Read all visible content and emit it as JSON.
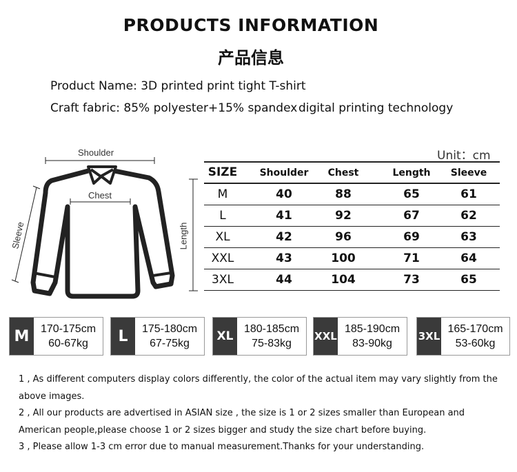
{
  "header": {
    "title": "PRODUCTS INFORMATION",
    "subtitle": "产品信息"
  },
  "product": {
    "name_line": "Product Name: 3D printed print tight T-shirt",
    "fabric_line": "Craft fabric: 85% polyester+15% spandex",
    "technology": "digital printing technology"
  },
  "diagram": {
    "shoulder": "Shoulder",
    "chest": "Chest",
    "sleeve": "Sleeve",
    "length": "Length"
  },
  "table": {
    "unit": "Unit：cm",
    "columns": [
      "SIZE",
      "Shoulder",
      "Chest",
      "Length",
      "Sleeve"
    ],
    "rows": [
      [
        "M",
        "40",
        "88",
        "65",
        "61"
      ],
      [
        "L",
        "41",
        "92",
        "67",
        "62"
      ],
      [
        "XL",
        "42",
        "96",
        "69",
        "63"
      ],
      [
        "XXL",
        "43",
        "100",
        "71",
        "64"
      ],
      [
        "3XL",
        "44",
        "104",
        "73",
        "65"
      ]
    ]
  },
  "size_guide": [
    {
      "size": "M",
      "height": "170-175cm",
      "weight": "60-67kg"
    },
    {
      "size": "L",
      "height": "175-180cm",
      "weight": "67-75kg"
    },
    {
      "size": "XL",
      "height": "180-185cm",
      "weight": "75-83kg"
    },
    {
      "size": "XXL",
      "height": "185-190cm",
      "weight": "83-90kg"
    },
    {
      "size": "3XL",
      "height": "165-170cm",
      "weight": "53-60kg"
    }
  ],
  "notes": [
    "1 , As different computers display colors differently, the color of the actual item may vary slightly from the above images.",
    "2 , All our products are advertised in ASIAN size , the size is 1 or 2 sizes smaller than European and American people,please choose 1 or 2 sizes bigger and study the size chart before buying.",
    "3 , Please allow 1-3 cm error due to manual measurement.Thanks for your understanding."
  ],
  "colors": {
    "label_bg": "#3a3a3a",
    "outline": "#222222"
  }
}
